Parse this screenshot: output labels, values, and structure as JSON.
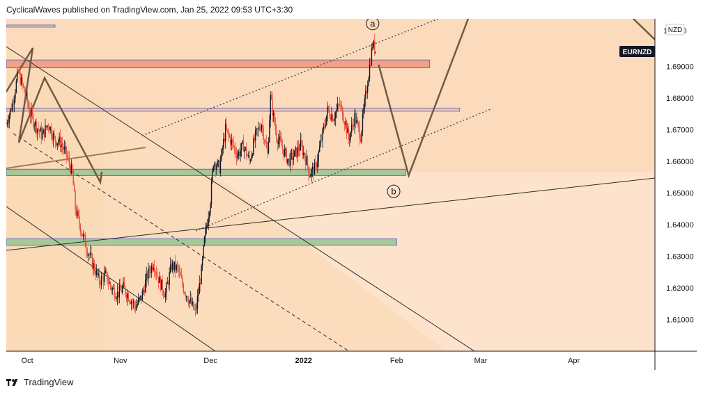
{
  "header": {
    "publish_line": "CyclicalWaves published on TradingView.com, Jan 25, 2022 09:53 UTC+3:30"
  },
  "footer": {
    "brand": "TradingView"
  },
  "symbol": {
    "ticker": "EURNZD",
    "currency": "NZD",
    "badge_color": "#131722"
  },
  "colors": {
    "plot_bg": "#fde3cc",
    "band_light": "#fbd6b0",
    "band_mid": "#fbdcbc",
    "resistance_zone": "#f4a287",
    "support_zone": "#a8c79a",
    "pivot_zone": "#f6c7b0",
    "candle_up": "#131722",
    "candle_down": "#e74c3c",
    "wave_line": "#6e5b46"
  },
  "chart_data": {
    "type": "candlestick",
    "title": "",
    "xlabel": "",
    "ylabel": "",
    "ylim": [
      1.6,
      1.705
    ],
    "x_range": [
      "2021-09-24",
      "2022-04-28"
    ],
    "y_ticks": [
      "1.61000",
      "1.62000",
      "1.63000",
      "1.64000",
      "1.65000",
      "1.66000",
      "1.67000",
      "1.68000",
      "1.69000"
    ],
    "y_top_label": "1.7000",
    "x_ticks": [
      {
        "label": "Oct",
        "date": "2021-10-01"
      },
      {
        "label": "Nov",
        "date": "2021-11-01"
      },
      {
        "label": "Dec",
        "date": "2021-12-01"
      },
      {
        "label": "2022",
        "date": "2022-01-01"
      },
      {
        "label": "Feb",
        "date": "2022-02-01"
      },
      {
        "label": "Mar",
        "date": "2022-03-01"
      },
      {
        "label": "Apr",
        "date": "2022-04-01"
      }
    ],
    "price_path": [
      [
        "2021-09-24",
        1.672
      ],
      [
        "2021-09-26",
        1.678
      ],
      [
        "2021-09-28",
        1.688
      ],
      [
        "2021-09-30",
        1.682
      ],
      [
        "2021-10-02",
        1.675
      ],
      [
        "2021-10-04",
        1.671
      ],
      [
        "2021-10-06",
        1.668
      ],
      [
        "2021-10-08",
        1.672
      ],
      [
        "2021-10-10",
        1.667
      ],
      [
        "2021-10-12",
        1.666
      ],
      [
        "2021-10-14",
        1.662
      ],
      [
        "2021-10-16",
        1.656
      ],
      [
        "2021-10-17",
        1.645
      ],
      [
        "2021-10-19",
        1.638
      ],
      [
        "2021-10-21",
        1.632
      ],
      [
        "2021-10-23",
        1.627
      ],
      [
        "2021-10-25",
        1.622
      ],
      [
        "2021-10-27",
        1.624
      ],
      [
        "2021-10-29",
        1.62
      ],
      [
        "2021-10-31",
        1.618
      ],
      [
        "2021-11-02",
        1.62
      ],
      [
        "2021-11-04",
        1.617
      ],
      [
        "2021-11-06",
        1.614
      ],
      [
        "2021-11-08",
        1.617
      ],
      [
        "2021-11-10",
        1.624
      ],
      [
        "2021-11-12",
        1.628
      ],
      [
        "2021-11-14",
        1.622
      ],
      [
        "2021-11-16",
        1.618
      ],
      [
        "2021-11-18",
        1.627
      ],
      [
        "2021-11-20",
        1.626
      ],
      [
        "2021-11-22",
        1.62
      ],
      [
        "2021-11-24",
        1.616
      ],
      [
        "2021-11-26",
        1.612
      ],
      [
        "2021-11-28",
        1.625
      ],
      [
        "2021-11-29",
        1.635
      ],
      [
        "2021-12-01",
        1.648
      ],
      [
        "2021-12-02",
        1.66
      ],
      [
        "2021-12-04",
        1.658
      ],
      [
        "2021-12-06",
        1.67
      ],
      [
        "2021-12-08",
        1.666
      ],
      [
        "2021-12-10",
        1.662
      ],
      [
        "2021-12-12",
        1.665
      ],
      [
        "2021-12-14",
        1.66
      ],
      [
        "2021-12-16",
        1.668
      ],
      [
        "2021-12-18",
        1.672
      ],
      [
        "2021-12-20",
        1.662
      ],
      [
        "2021-12-21",
        1.68
      ],
      [
        "2021-12-23",
        1.668
      ],
      [
        "2021-12-25",
        1.664
      ],
      [
        "2021-12-27",
        1.66
      ],
      [
        "2021-12-29",
        1.662
      ],
      [
        "2021-12-31",
        1.665
      ],
      [
        "2022-01-02",
        1.66
      ],
      [
        "2022-01-03",
        1.656
      ],
      [
        "2022-01-05",
        1.658
      ],
      [
        "2022-01-07",
        1.667
      ],
      [
        "2022-01-09",
        1.676
      ],
      [
        "2022-01-11",
        1.674
      ],
      [
        "2022-01-13",
        1.678
      ],
      [
        "2022-01-15",
        1.672
      ],
      [
        "2022-01-16",
        1.667
      ],
      [
        "2022-01-18",
        1.674
      ],
      [
        "2022-01-20",
        1.668
      ],
      [
        "2022-01-22",
        1.683
      ],
      [
        "2022-01-23",
        1.69
      ],
      [
        "2022-01-24",
        1.697
      ],
      [
        "2022-01-25",
        1.695
      ]
    ],
    "zones": [
      {
        "name": "resistance",
        "y_low": 1.6895,
        "y_high": 1.692,
        "x_start": "2021-09-24",
        "x_end": "2022-02-12"
      },
      {
        "name": "pivot",
        "y_low": 1.6758,
        "y_high": 1.6768,
        "x_start": "2021-09-24",
        "x_end": "2022-02-22"
      },
      {
        "name": "support-upper",
        "y_low": 1.6555,
        "y_high": 1.6575,
        "x_start": "2021-09-24",
        "x_end": "2022-02-04"
      },
      {
        "name": "support-lower",
        "y_low": 1.6335,
        "y_high": 1.6355,
        "x_start": "2021-09-24",
        "x_end": "2022-02-01"
      }
    ],
    "wave_labels": [
      {
        "text": "a",
        "date": "2022-01-24",
        "value": 1.7035
      },
      {
        "text": "b",
        "date": "2022-01-31",
        "value": 1.6505
      }
    ],
    "projection_path": [
      [
        "2022-01-26",
        1.6905
      ],
      [
        "2022-02-05",
        1.6555
      ],
      [
        "2022-02-25",
        1.7055
      ]
    ],
    "grid": false,
    "legend": "none"
  }
}
